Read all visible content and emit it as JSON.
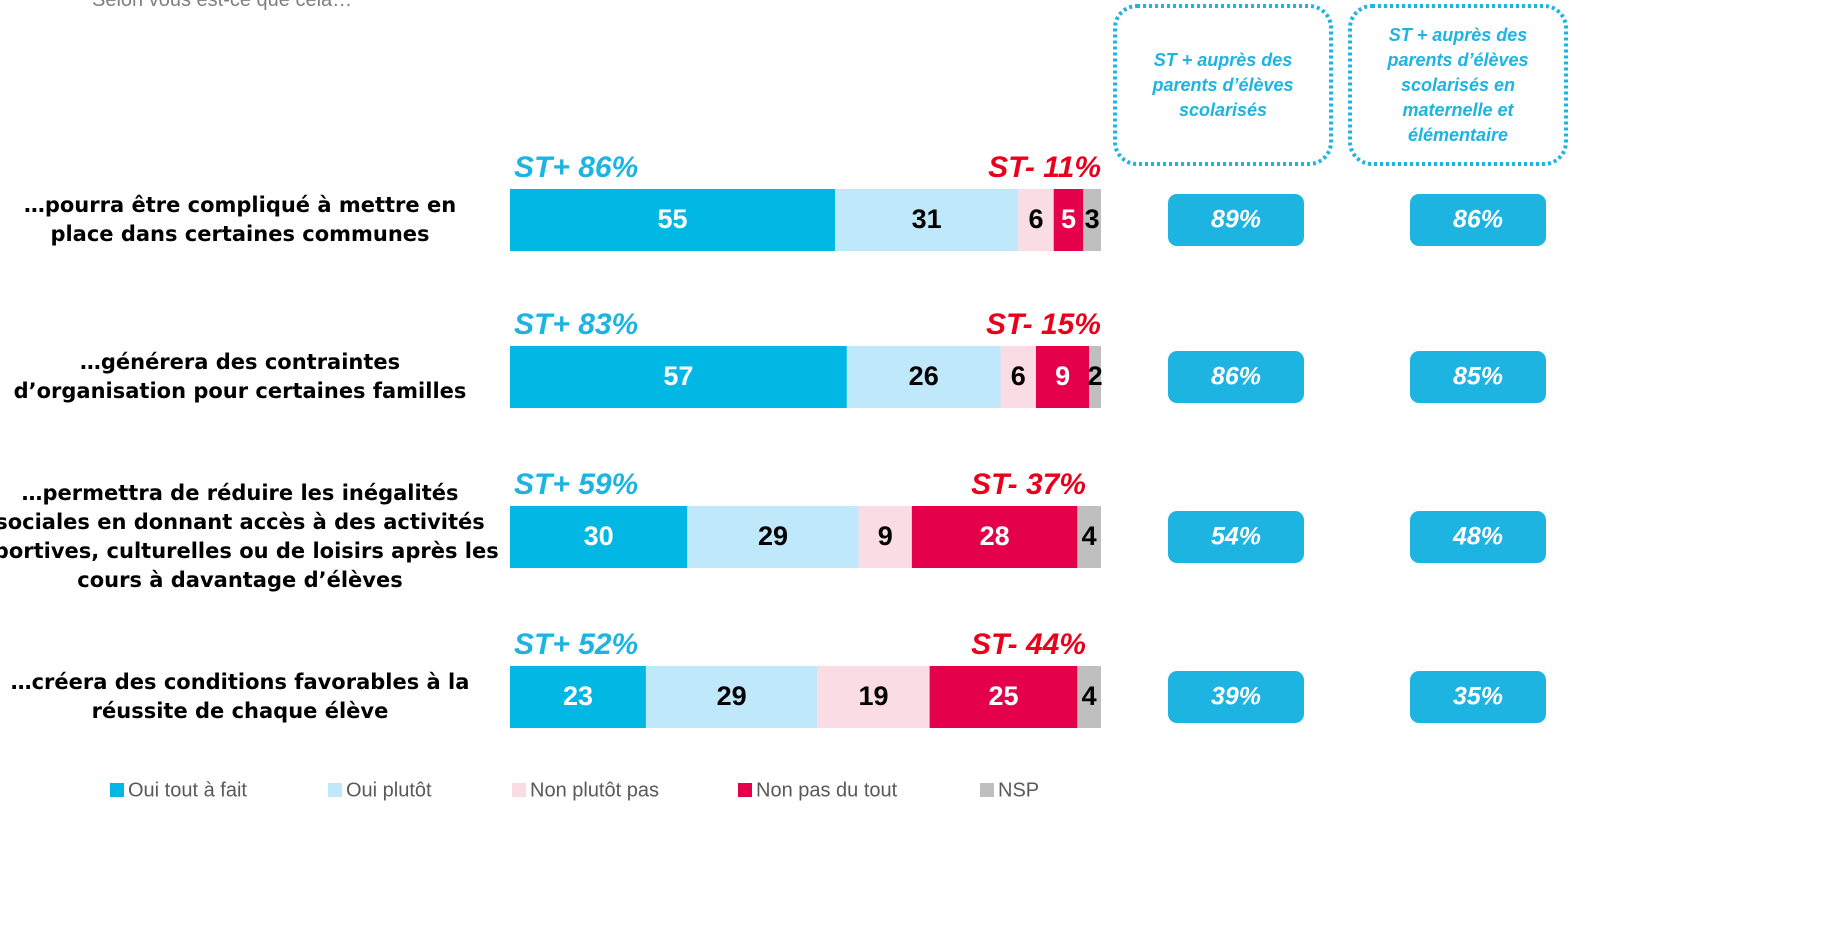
{
  "chart_data": {
    "type": "stacked_bar_horizontal",
    "subtitle": "Selon vous est-ce que cela…",
    "categories": [
      "…pourra être compliqué à mettre en place dans certaines communes",
      "…générera des contraintes d’organisation pour certaines familles",
      "…permettra de réduire les inégalités sociales en donnant accès à des activités sportives, culturelles ou de loisirs après les cours à davantage d’élèves",
      "…créera des conditions favorables à la réussite de chaque élève"
    ],
    "xlim": [
      0,
      100
    ],
    "series": [
      {
        "name": "Oui tout à fait",
        "color": "#00b8e3",
        "text_color": "#ffffff",
        "values": [
          55,
          57,
          30,
          23
        ]
      },
      {
        "name": "Oui plutôt",
        "color": "#bfe8fa",
        "text_color": "#000000",
        "values": [
          31,
          26,
          29,
          29
        ]
      },
      {
        "name": "Non plutôt pas",
        "color": "#fadce5",
        "text_color": "#000000",
        "values": [
          6,
          6,
          9,
          19
        ]
      },
      {
        "name": "Non pas du tout",
        "color": "#e4004b",
        "text_color": "#ffffff",
        "values": [
          5,
          9,
          28,
          25
        ]
      },
      {
        "name": "NSP",
        "color": "#bfbfbf",
        "text_color": "#000000",
        "values": [
          3,
          2,
          4,
          4
        ]
      }
    ],
    "st_plus": {
      "color": "#1db4e2",
      "values": [
        86,
        83,
        59,
        52
      ],
      "value_labels": [
        "ST+ 86%",
        "ST+ 83%",
        "ST+ 59%",
        "ST+ 52%"
      ]
    },
    "st_minus": {
      "color": "#e8001c",
      "values": [
        11,
        15,
        37,
        44
      ],
      "value_labels": [
        "ST- 11%",
        "ST- 15%",
        "ST- 37%",
        "ST- 44%"
      ]
    },
    "comparisons": [
      {
        "header": "ST + auprès des parents d’élèves scolarisés",
        "values": [
          89,
          86,
          54,
          39
        ],
        "value_labels": [
          "89%",
          "86%",
          "54%",
          "39%"
        ]
      },
      {
        "header": "ST + auprès des parents d’élèves scolarisés en maternelle et élémentaire",
        "values": [
          86,
          85,
          48,
          35
        ],
        "value_labels": [
          "86%",
          "85%",
          "48%",
          "35%"
        ]
      }
    ],
    "comparison_color": "#1db4e2"
  }
}
